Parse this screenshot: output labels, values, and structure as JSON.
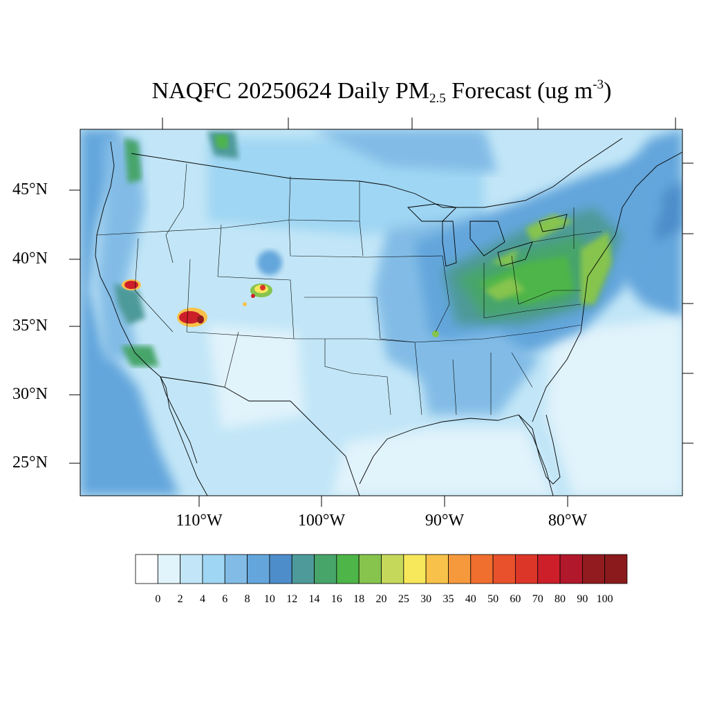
{
  "map": {
    "title_prefix": "NAQFC 20250624 Daily PM",
    "title_sub": "2.5",
    "title_mid": " Forecast (ug m",
    "title_sup": "-3",
    "title_end": ")",
    "lat_labels": [
      "45°N",
      "40°N",
      "35°N",
      "30°N",
      "25°N"
    ],
    "lon_labels": [
      "110°W",
      "100°W",
      "90°W",
      "80°W"
    ]
  },
  "colorbar": {
    "labels": [
      "0",
      "2",
      "4",
      "6",
      "8",
      "10",
      "12",
      "14",
      "16",
      "18",
      "20",
      "25",
      "30",
      "35",
      "40",
      "50",
      "60",
      "70",
      "80",
      "90",
      "100"
    ],
    "colors": [
      "#ffffff",
      "#e1f3fb",
      "#c2e6f7",
      "#9fd6f3",
      "#82bce6",
      "#64a6dc",
      "#4d8dca",
      "#4e9a9a",
      "#47a56a",
      "#4eb548",
      "#86c44d",
      "#c6d85a",
      "#f7e75a",
      "#f8c24a",
      "#f6993d",
      "#f06e2e",
      "#e8512b",
      "#dc3628",
      "#cc1f2a",
      "#b2182b",
      "#911b1e",
      "#8a1a1c"
    ]
  },
  "legend_icons": {
    "north": "north-indicator-none"
  }
}
